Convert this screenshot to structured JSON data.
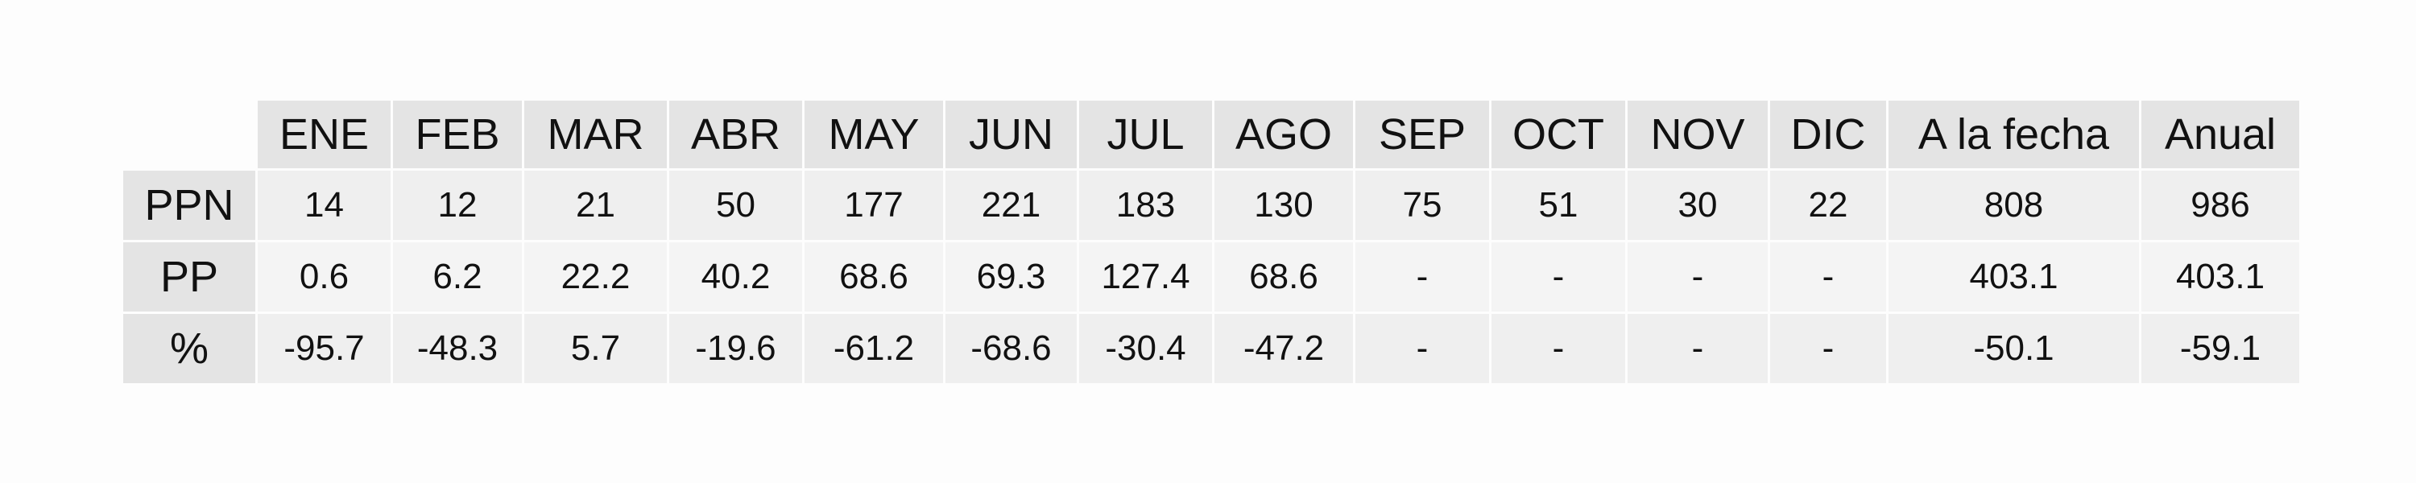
{
  "chart_data": {
    "type": "table",
    "columns": [
      "ENE",
      "FEB",
      "MAR",
      "ABR",
      "MAY",
      "JUN",
      "JUL",
      "AGO",
      "SEP",
      "OCT",
      "NOV",
      "DIC",
      "A la fecha",
      "Anual"
    ],
    "rows": [
      {
        "label": "PPN",
        "values": [
          "14",
          "12",
          "21",
          "50",
          "177",
          "221",
          "183",
          "130",
          "75",
          "51",
          "30",
          "22",
          "808",
          "986"
        ]
      },
      {
        "label": "PP",
        "values": [
          "0.6",
          "6.2",
          "22.2",
          "40.2",
          "68.6",
          "69.3",
          "127.4",
          "68.6",
          "-",
          "-",
          "-",
          "-",
          "403.1",
          "403.1"
        ]
      },
      {
        "label": "%",
        "values": [
          "-95.7",
          "-48.3",
          "5.7",
          "-19.6",
          "-61.2",
          "-68.6",
          "-30.4",
          "-47.2",
          "-",
          "-",
          "-",
          "-",
          "-50.1",
          "-59.1"
        ]
      }
    ]
  }
}
